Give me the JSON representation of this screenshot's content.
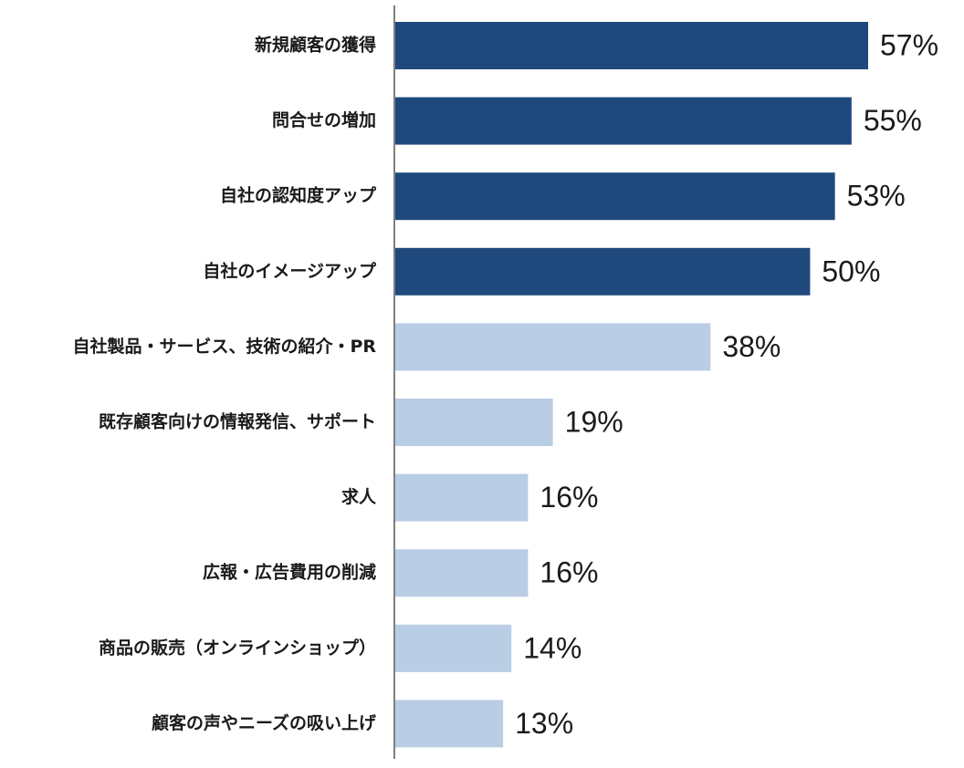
{
  "chart_data": {
    "type": "bar",
    "orientation": "horizontal",
    "categories": [
      "新規顧客の獲得",
      "問合せの増加",
      "自社の認知度アップ",
      "自社のイメージアップ",
      "自社製品・サービス、技術の紹介・PR",
      "既存顧客向けの情報発信、サポート",
      "求人",
      "広報・広告費用の削減",
      "商品の販売（オンラインショップ）",
      "顧客の声やニーズの吸い上げ"
    ],
    "values": [
      57,
      55,
      53,
      50,
      38,
      19,
      16,
      16,
      14,
      13
    ],
    "value_labels": [
      "57%",
      "55%",
      "53%",
      "50%",
      "38%",
      "19%",
      "16%",
      "16%",
      "14%",
      "13%"
    ],
    "highlight": [
      true,
      true,
      true,
      true,
      false,
      false,
      false,
      false,
      false,
      false
    ],
    "title": "",
    "xlabel": "",
    "ylabel": "",
    "xlim": [
      0,
      57
    ],
    "grid": false,
    "legend": "none",
    "colors": {
      "highlight": "#1f497d",
      "normal": "#b9cde5",
      "axis": "#7f7f7f"
    }
  }
}
